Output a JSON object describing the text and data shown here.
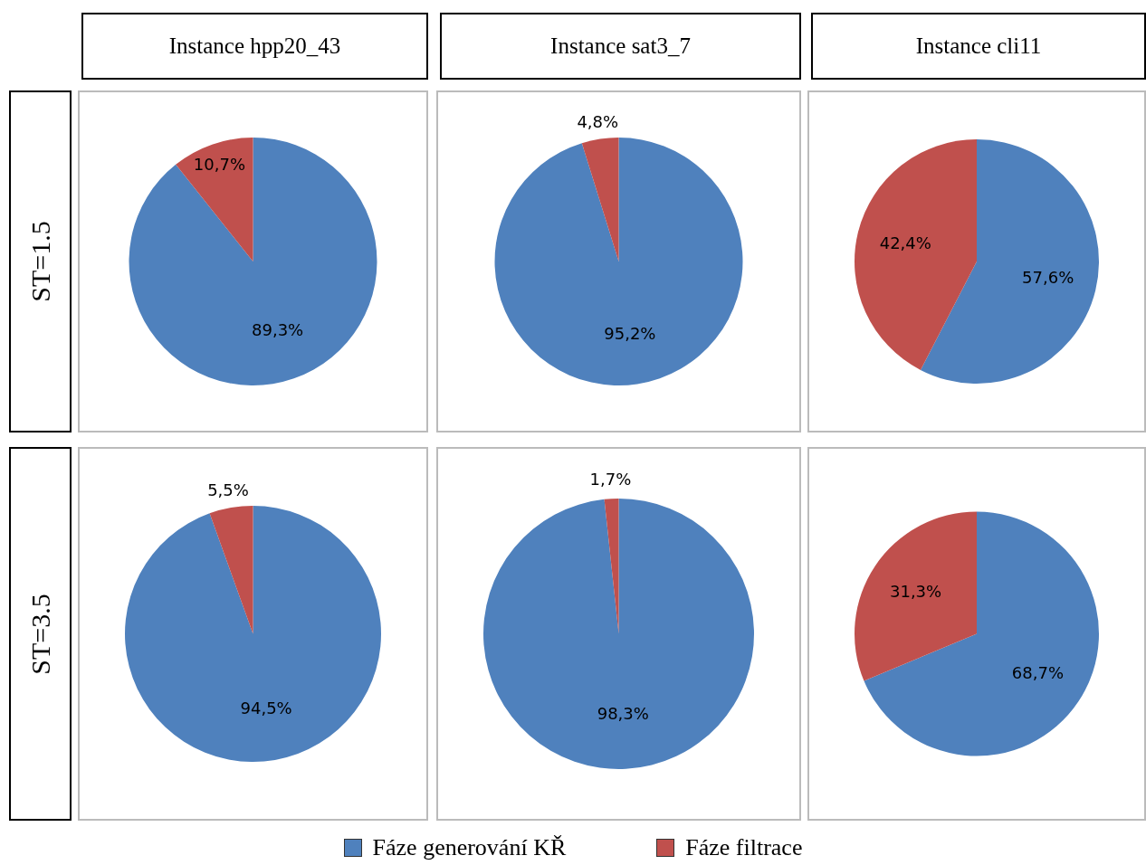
{
  "chart_data": [
    {
      "type": "pie",
      "title": "Instance hpp20_43",
      "ylabel": "ST=1.5",
      "legend": "bottom",
      "categories": [
        "Fáze generování KŘ",
        "Fáze filtrace"
      ],
      "values": [
        89.3,
        10.7
      ],
      "value_labels": [
        "89,3%",
        "10,7%"
      ],
      "colors": [
        "#4f81bd",
        "#c0504d"
      ]
    },
    {
      "type": "pie",
      "title": "Instance sat3_7",
      "categories": [
        null,
        null
      ],
      "values": [
        95.2,
        4.8
      ],
      "value_labels": [
        "95,2%",
        "4,8%"
      ],
      "colors": [
        "#4f81bd",
        "#c0504d"
      ]
    },
    {
      "type": "pie",
      "title": "Instance cli11",
      "categories": [
        null,
        null
      ],
      "values": [
        57.6,
        42.4
      ],
      "value_labels": [
        "57,6%",
        "42,4%"
      ],
      "colors": [
        "#4f81bd",
        "#c0504d"
      ]
    },
    {
      "type": "pie",
      "ylabel": "ST=3.5",
      "categories": [
        null,
        null
      ],
      "values": [
        94.5,
        5.5
      ],
      "value_labels": [
        "94,5%",
        "5,5%"
      ],
      "colors": [
        "#4f81bd",
        "#c0504d"
      ]
    },
    {
      "type": "pie",
      "categories": [
        null,
        null
      ],
      "values": [
        98.3,
        1.7
      ],
      "value_labels": [
        "98,3%",
        "1,7%"
      ],
      "colors": [
        "#4f81bd",
        "#c0504d"
      ]
    },
    {
      "type": "pie",
      "categories": [
        null,
        null
      ],
      "values": [
        68.7,
        31.3
      ],
      "value_labels": [
        "68,7%",
        "31,3%"
      ],
      "colors": [
        "#4f81bd",
        "#c0504d"
      ]
    }
  ]
}
